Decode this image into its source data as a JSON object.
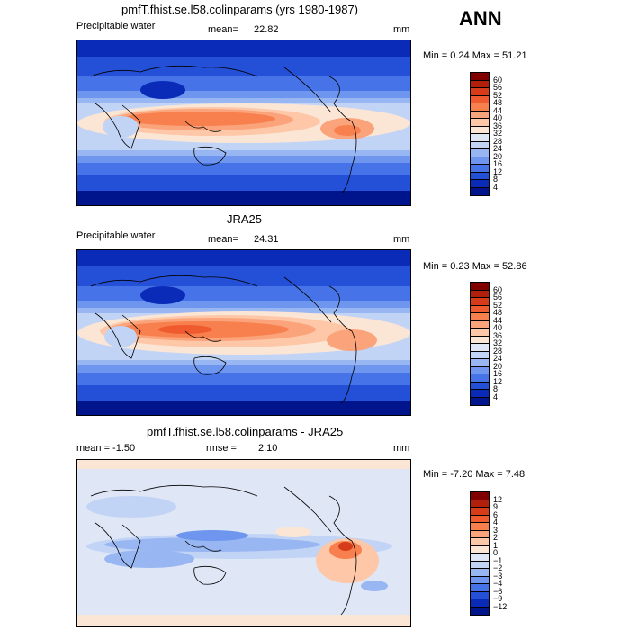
{
  "season": "ANN",
  "panels": [
    {
      "title": "pmfT.fhist.se.l58.colinparams (yrs 1980-1987)",
      "variable": "Precipitable water",
      "stats_left": "",
      "stat_label": "mean=",
      "stat_value": "22.82",
      "units": "mm",
      "minmax": "Min =    0.24  Max =   51.21",
      "levels": [
        "60",
        "56",
        "52",
        "48",
        "44",
        "40",
        "36",
        "32",
        "28",
        "24",
        "20",
        "16",
        "12",
        "8",
        "4"
      ],
      "colors": [
        "#800000",
        "#b0200c",
        "#d63b1a",
        "#ef5a2e",
        "#f7804e",
        "#fba37a",
        "#fdc7a8",
        "#fbe6d6",
        "#dfe7f6",
        "#c2d4f5",
        "#98b6f2",
        "#6e96ee",
        "#4674e8",
        "#2450d8",
        "#0a2ab8",
        "#00148c"
      ]
    },
    {
      "title": "JRA25",
      "variable": "Precipitable water",
      "stats_left": "",
      "stat_label": "mean=",
      "stat_value": "24.31",
      "units": "mm",
      "minmax": "Min =    0.23  Max =   52.86",
      "levels": [
        "60",
        "56",
        "52",
        "48",
        "44",
        "40",
        "36",
        "32",
        "28",
        "24",
        "20",
        "16",
        "12",
        "8",
        "4"
      ],
      "colors": [
        "#800000",
        "#b0200c",
        "#d63b1a",
        "#ef5a2e",
        "#f7804e",
        "#fba37a",
        "#fdc7a8",
        "#fbe6d6",
        "#dfe7f6",
        "#c2d4f5",
        "#98b6f2",
        "#6e96ee",
        "#4674e8",
        "#2450d8",
        "#0a2ab8",
        "#00148c"
      ]
    },
    {
      "title": "pmfT.fhist.se.l58.colinparams - JRA25",
      "variable": "",
      "stats_left": "mean =   -1.50",
      "stat_label": "rmse =",
      "stat_value": "2.10",
      "units": "mm",
      "minmax": "Min =  -7.20  Max =    7.48",
      "levels": [
        "12",
        "9",
        "6",
        "4",
        "3",
        "2",
        "1",
        "0",
        "−1",
        "−2",
        "−3",
        "−4",
        "−6",
        "−9",
        "−12"
      ],
      "colors": [
        "#800000",
        "#b0200c",
        "#d63b1a",
        "#ef5a2e",
        "#f7804e",
        "#fba37a",
        "#fdc7a8",
        "#fbe6d6",
        "#dfe7f6",
        "#c2d4f5",
        "#98b6f2",
        "#6e96ee",
        "#4674e8",
        "#2450d8",
        "#0a2ab8",
        "#00148c"
      ]
    }
  ]
}
